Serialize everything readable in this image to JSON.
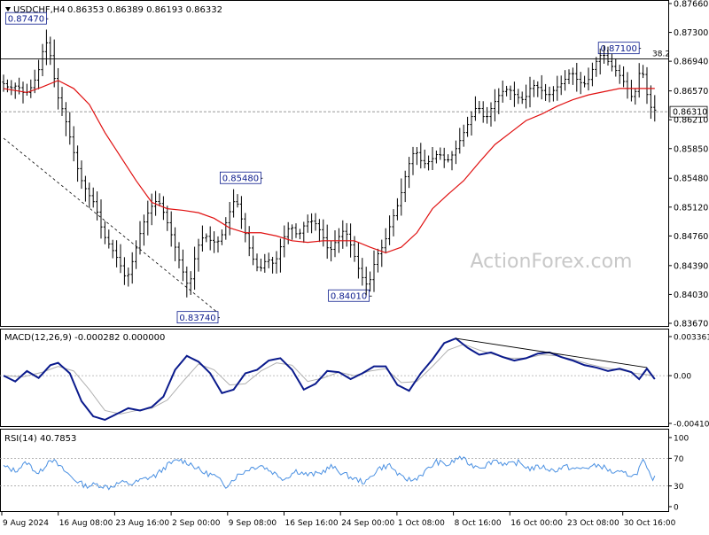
{
  "header": {
    "symbol": "USDCHF,H4",
    "ohlc": "0.86353 0.86389 0.86193 0.86332",
    "menu_arrow": "triangle-down-icon"
  },
  "watermark": "ActionForex.com",
  "colors": {
    "candles": "#000000",
    "ma": "#e01010",
    "macd": "#0a1a8c",
    "signal": "#b0b0b0",
    "rsi": "#4a90e2",
    "label_border": "#0a1a8c",
    "watermark": "#c8c8c8"
  },
  "chart_data": [
    {
      "type": "candlestick",
      "title": "USDCHF,H4",
      "ylim": [
        0.8367,
        0.8766
      ],
      "y_ticks": [
        "0.87660",
        "0.87300",
        "0.86940",
        "0.86570",
        "0.86210",
        "0.85850",
        "0.85480",
        "0.85120",
        "0.84760",
        "0.84390",
        "0.84030",
        "0.83670"
      ],
      "current_price_label": "0.86310",
      "current_price": 0.8631,
      "resistance_line": 0.8697,
      "fib_label": "38.2",
      "annotations": [
        {
          "label": "0.87470",
          "value": 0.8747
        },
        {
          "label": "0.85480",
          "value": 0.8548
        },
        {
          "label": "0.83740",
          "value": 0.8374
        },
        {
          "label": "0.84010",
          "value": 0.8401
        },
        {
          "label": "0.87100",
          "value": 0.871
        }
      ],
      "close_path": [
        [
          0,
          0.8668
        ],
        [
          2,
          0.866
        ],
        [
          4,
          0.8664
        ],
        [
          6,
          0.8652
        ],
        [
          8,
          0.8664
        ],
        [
          10,
          0.869
        ],
        [
          11,
          0.8722
        ],
        [
          12,
          0.8712
        ],
        [
          13,
          0.869
        ],
        [
          14,
          0.8655
        ],
        [
          16,
          0.8628
        ],
        [
          18,
          0.859
        ],
        [
          20,
          0.855
        ],
        [
          22,
          0.853
        ],
        [
          24,
          0.8515
        ],
        [
          26,
          0.8478
        ],
        [
          28,
          0.8462
        ],
        [
          30,
          0.8445
        ],
        [
          32,
          0.842
        ],
        [
          34,
          0.8452
        ],
        [
          36,
          0.8488
        ],
        [
          38,
          0.851
        ],
        [
          40,
          0.8522
        ],
        [
          42,
          0.85
        ],
        [
          44,
          0.847
        ],
        [
          46,
          0.8438
        ],
        [
          48,
          0.841
        ],
        [
          50,
          0.846
        ],
        [
          52,
          0.8478
        ],
        [
          54,
          0.8468
        ],
        [
          56,
          0.847
        ],
        [
          58,
          0.85
        ],
        [
          60,
          0.8525
        ],
        [
          62,
          0.8488
        ],
        [
          64,
          0.8452
        ],
        [
          66,
          0.8432
        ],
        [
          68,
          0.8448
        ],
        [
          70,
          0.844
        ],
        [
          72,
          0.847
        ],
        [
          74,
          0.849
        ],
        [
          76,
          0.8475
        ],
        [
          78,
          0.8493
        ],
        [
          80,
          0.8495
        ],
        [
          82,
          0.848
        ],
        [
          84,
          0.8455
        ],
        [
          86,
          0.8472
        ],
        [
          88,
          0.8485
        ],
        [
          90,
          0.8458
        ],
        [
          92,
          0.8428
        ],
        [
          94,
          0.8412
        ],
        [
          96,
          0.845
        ],
        [
          98,
          0.8465
        ],
        [
          100,
          0.8495
        ],
        [
          102,
          0.852
        ],
        [
          104,
          0.856
        ],
        [
          106,
          0.8585
        ],
        [
          108,
          0.8565
        ],
        [
          110,
          0.857
        ],
        [
          112,
          0.858
        ],
        [
          114,
          0.8568
        ],
        [
          116,
          0.858
        ],
        [
          118,
          0.86
        ],
        [
          120,
          0.862
        ],
        [
          122,
          0.864
        ],
        [
          124,
          0.862
        ],
        [
          126,
          0.864
        ],
        [
          128,
          0.8655
        ],
        [
          130,
          0.866
        ],
        [
          132,
          0.865
        ],
        [
          134,
          0.8645
        ],
        [
          136,
          0.8665
        ],
        [
          138,
          0.866
        ],
        [
          140,
          0.865
        ],
        [
          142,
          0.866
        ],
        [
          144,
          0.8668
        ],
        [
          146,
          0.8682
        ],
        [
          148,
          0.8668
        ],
        [
          150,
          0.8665
        ],
        [
          152,
          0.869
        ],
        [
          154,
          0.8705
        ],
        [
          156,
          0.869
        ],
        [
          158,
          0.868
        ],
        [
          160,
          0.8665
        ],
        [
          162,
          0.8645
        ],
        [
          164,
          0.869
        ],
        [
          166,
          0.864
        ],
        [
          167,
          0.8633
        ]
      ],
      "ma_path": [
        [
          0,
          0.866
        ],
        [
          6,
          0.8655
        ],
        [
          10,
          0.8662
        ],
        [
          14,
          0.867
        ],
        [
          18,
          0.866
        ],
        [
          22,
          0.864
        ],
        [
          26,
          0.8605
        ],
        [
          30,
          0.8575
        ],
        [
          34,
          0.8545
        ],
        [
          38,
          0.8518
        ],
        [
          42,
          0.851
        ],
        [
          46,
          0.8508
        ],
        [
          50,
          0.8505
        ],
        [
          54,
          0.8498
        ],
        [
          58,
          0.8486
        ],
        [
          62,
          0.848
        ],
        [
          66,
          0.848
        ],
        [
          70,
          0.8476
        ],
        [
          74,
          0.847
        ],
        [
          78,
          0.8468
        ],
        [
          82,
          0.847
        ],
        [
          86,
          0.847
        ],
        [
          90,
          0.847
        ],
        [
          94,
          0.8462
        ],
        [
          98,
          0.8455
        ],
        [
          102,
          0.8462
        ],
        [
          106,
          0.848
        ],
        [
          110,
          0.851
        ],
        [
          114,
          0.8528
        ],
        [
          118,
          0.8545
        ],
        [
          122,
          0.8568
        ],
        [
          126,
          0.859
        ],
        [
          130,
          0.8605
        ],
        [
          134,
          0.862
        ],
        [
          138,
          0.8628
        ],
        [
          142,
          0.8638
        ],
        [
          146,
          0.8646
        ],
        [
          150,
          0.8652
        ],
        [
          154,
          0.8656
        ],
        [
          158,
          0.866
        ],
        [
          162,
          0.866
        ],
        [
          167,
          0.866
        ]
      ],
      "trendline_down": [
        [
          0,
          0.8598
        ],
        [
          55,
          0.838
        ]
      ]
    },
    {
      "type": "line",
      "title": "MACD(12,26,9) -0.000282 0.000000",
      "ylim": [
        -0.004108,
        0.003361
      ],
      "y_ticks": [
        "0.003361",
        "0.00",
        "-0.004108"
      ],
      "macd": [
        [
          0,
          0.0
        ],
        [
          3,
          -0.0005
        ],
        [
          6,
          0.0004
        ],
        [
          9,
          -0.0002
        ],
        [
          12,
          0.0009
        ],
        [
          14,
          0.0011
        ],
        [
          17,
          0.0002
        ],
        [
          20,
          -0.0022
        ],
        [
          23,
          -0.0035
        ],
        [
          26,
          -0.0038
        ],
        [
          29,
          -0.0033
        ],
        [
          32,
          -0.0028
        ],
        [
          35,
          -0.003
        ],
        [
          38,
          -0.0027
        ],
        [
          41,
          -0.0018
        ],
        [
          44,
          0.0005
        ],
        [
          47,
          0.0017
        ],
        [
          50,
          0.0012
        ],
        [
          53,
          0.0002
        ],
        [
          56,
          -0.0015
        ],
        [
          59,
          -0.0012
        ],
        [
          62,
          0.0002
        ],
        [
          65,
          0.0005
        ],
        [
          68,
          0.0013
        ],
        [
          71,
          0.0015
        ],
        [
          74,
          0.0005
        ],
        [
          77,
          -0.0012
        ],
        [
          80,
          -0.0007
        ],
        [
          83,
          0.0004
        ],
        [
          86,
          0.0003
        ],
        [
          89,
          -0.0003
        ],
        [
          92,
          0.0002
        ],
        [
          95,
          0.0008
        ],
        [
          98,
          0.0008
        ],
        [
          101,
          -0.0008
        ],
        [
          104,
          -0.0013
        ],
        [
          107,
          0.0002
        ],
        [
          110,
          0.0014
        ],
        [
          113,
          0.0028
        ],
        [
          116,
          0.0032
        ],
        [
          119,
          0.0024
        ],
        [
          122,
          0.0018
        ],
        [
          125,
          0.002
        ],
        [
          128,
          0.0016
        ],
        [
          131,
          0.0013
        ],
        [
          134,
          0.0015
        ],
        [
          137,
          0.0019
        ],
        [
          140,
          0.002
        ],
        [
          143,
          0.0016
        ],
        [
          146,
          0.0013
        ],
        [
          149,
          0.0009
        ],
        [
          152,
          0.0007
        ],
        [
          155,
          0.0004
        ],
        [
          158,
          0.0006
        ],
        [
          161,
          0.0003
        ],
        [
          163,
          -0.0003
        ],
        [
          165,
          0.0006
        ],
        [
          167,
          -0.0003
        ]
      ],
      "signal": [
        [
          0,
          0.0
        ],
        [
          5,
          -0.0001
        ],
        [
          10,
          0.0003
        ],
        [
          14,
          0.0008
        ],
        [
          18,
          0.0004
        ],
        [
          22,
          -0.0012
        ],
        [
          26,
          -0.003
        ],
        [
          30,
          -0.0033
        ],
        [
          34,
          -0.003
        ],
        [
          38,
          -0.0028
        ],
        [
          42,
          -0.0021
        ],
        [
          46,
          -0.0005
        ],
        [
          50,
          0.001
        ],
        [
          54,
          0.0005
        ],
        [
          58,
          -0.0008
        ],
        [
          62,
          -0.0007
        ],
        [
          66,
          0.0004
        ],
        [
          70,
          0.0011
        ],
        [
          74,
          0.0009
        ],
        [
          78,
          -0.0005
        ],
        [
          82,
          -0.0002
        ],
        [
          86,
          0.0003
        ],
        [
          90,
          0.0
        ],
        [
          94,
          0.0004
        ],
        [
          98,
          0.0006
        ],
        [
          102,
          -0.0006
        ],
        [
          106,
          -0.0005
        ],
        [
          110,
          0.0008
        ],
        [
          114,
          0.0022
        ],
        [
          118,
          0.0027
        ],
        [
          122,
          0.0022
        ],
        [
          126,
          0.0018
        ],
        [
          130,
          0.0015
        ],
        [
          134,
          0.0015
        ],
        [
          138,
          0.0018
        ],
        [
          142,
          0.0017
        ],
        [
          146,
          0.0014
        ],
        [
          150,
          0.001
        ],
        [
          154,
          0.0007
        ],
        [
          158,
          0.0005
        ],
        [
          162,
          0.0002
        ],
        [
          167,
          0.0
        ]
      ],
      "trendline": [
        [
          116,
          0.0032
        ],
        [
          165,
          0.0007
        ]
      ]
    },
    {
      "type": "line",
      "title": "RSI(14) 40.7853",
      "ylim": [
        0,
        100
      ],
      "y_ticks": [
        "100",
        "70",
        "30",
        "0"
      ],
      "levels": [
        70,
        30
      ],
      "rsi": [
        [
          0,
          58
        ],
        [
          3,
          52
        ],
        [
          6,
          64
        ],
        [
          9,
          47
        ],
        [
          12,
          70
        ],
        [
          15,
          55
        ],
        [
          18,
          40
        ],
        [
          21,
          30
        ],
        [
          24,
          32
        ],
        [
          27,
          28
        ],
        [
          30,
          35
        ],
        [
          33,
          33
        ],
        [
          36,
          40
        ],
        [
          39,
          45
        ],
        [
          42,
          60
        ],
        [
          45,
          68
        ],
        [
          48,
          62
        ],
        [
          51,
          50
        ],
        [
          54,
          45
        ],
        [
          57,
          30
        ],
        [
          60,
          45
        ],
        [
          63,
          55
        ],
        [
          66,
          60
        ],
        [
          69,
          50
        ],
        [
          72,
          40
        ],
        [
          75,
          52
        ],
        [
          78,
          46
        ],
        [
          81,
          48
        ],
        [
          84,
          58
        ],
        [
          87,
          48
        ],
        [
          90,
          40
        ],
        [
          93,
          35
        ],
        [
          96,
          55
        ],
        [
          99,
          60
        ],
        [
          102,
          42
        ],
        [
          105,
          38
        ],
        [
          108,
          50
        ],
        [
          111,
          65
        ],
        [
          114,
          60
        ],
        [
          117,
          72
        ],
        [
          120,
          60
        ],
        [
          123,
          58
        ],
        [
          126,
          68
        ],
        [
          129,
          60
        ],
        [
          132,
          64
        ],
        [
          135,
          55
        ],
        [
          138,
          58
        ],
        [
          141,
          52
        ],
        [
          144,
          58
        ],
        [
          147,
          54
        ],
        [
          150,
          57
        ],
        [
          153,
          60
        ],
        [
          156,
          50
        ],
        [
          159,
          48
        ],
        [
          162,
          45
        ],
        [
          164,
          66
        ],
        [
          166,
          42
        ],
        [
          167,
          41
        ]
      ]
    }
  ],
  "time_axis": {
    "labels": [
      "9 Aug 2024",
      "16 Aug 08:00",
      "23 Aug 16:00",
      "2 Sep 00:00",
      "9 Sep 08:00",
      "16 Sep 16:00",
      "24 Sep 00:00",
      "1 Oct 08:00",
      "8 Oct 16:00",
      "16 Oct 00:00",
      "23 Oct 08:00",
      "30 Oct 16:00"
    ],
    "label_bars": [
      0,
      16,
      32,
      48,
      64,
      80,
      96,
      112,
      128,
      144,
      160,
      176
    ]
  }
}
